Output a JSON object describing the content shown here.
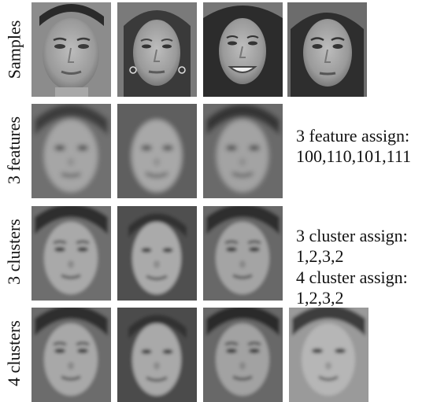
{
  "rows": [
    {
      "label": "Samples"
    },
    {
      "label": "3 features"
    },
    {
      "label": "3 clusters"
    },
    {
      "label": "4 clusters"
    }
  ],
  "faces": {
    "samples": [
      {
        "description": "sample face 1: young man, short dark hair"
      },
      {
        "description": "sample face 2: woman, long dark hair"
      },
      {
        "description": "sample face 3: smiling woman, dark curly hair"
      },
      {
        "description": "sample face 4: woman, dark hair"
      }
    ],
    "features": 3,
    "clusters3": 3,
    "clusters4": 4
  },
  "notes": {
    "features_line1": "3 feature assign:",
    "features_line2": "100,110,101,111",
    "clusters3_line1": "3 cluster assign:",
    "clusters3_line2": "1,2,3,2",
    "clusters4_line1": "4 cluster assign:",
    "clusters4_line2": "1,2,3,2"
  }
}
